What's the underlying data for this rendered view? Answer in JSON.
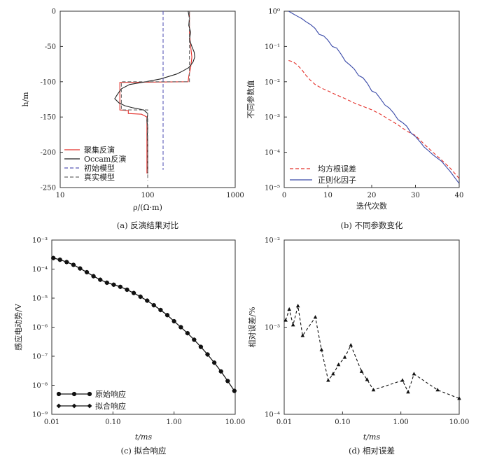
{
  "chart_data": [
    {
      "id": "a",
      "type": "line",
      "caption": "(a) 反演结果对比",
      "xlabel": "ρ/(Ω·m)",
      "ylabel": "h/m",
      "xscale": "log",
      "xlim": [
        10,
        1000
      ],
      "ylim": [
        -250,
        0
      ],
      "xticks": [
        {
          "v": 10,
          "label": "10"
        },
        {
          "v": 100,
          "label": "100"
        },
        {
          "v": 1000,
          "label": "1000"
        }
      ],
      "yticks": [
        {
          "v": 0,
          "label": "0"
        },
        {
          "v": -50,
          "label": "-50"
        },
        {
          "v": -100,
          "label": "-100"
        },
        {
          "v": -150,
          "label": "-150"
        },
        {
          "v": -200,
          "label": "-200"
        },
        {
          "v": -250,
          "label": "-250"
        }
      ],
      "legend_position": "bottom-left",
      "series": [
        {
          "name": "聚集反演",
          "color": "#e4312b",
          "dash": "",
          "points": [
            [
              300,
              0
            ],
            [
              300,
              -30
            ],
            [
              310,
              -50
            ],
            [
              320,
              -65
            ],
            [
              310,
              -80
            ],
            [
              295,
              -92
            ],
            [
              290,
              -100
            ],
            [
              48,
              -101
            ],
            [
              48,
              -140
            ],
            [
              60,
              -141
            ],
            [
              60,
              -145
            ],
            [
              85,
              -146
            ],
            [
              98,
              -150
            ],
            [
              98,
              -230
            ]
          ]
        },
        {
          "name": "Occam反演",
          "color": "#222222",
          "dash": "",
          "points": [
            [
              290,
              0
            ],
            [
              300,
              -10
            ],
            [
              295,
              -20
            ],
            [
              310,
              -30
            ],
            [
              300,
              -40
            ],
            [
              320,
              -50
            ],
            [
              340,
              -58
            ],
            [
              345,
              -65
            ],
            [
              330,
              -72
            ],
            [
              295,
              -80
            ],
            [
              250,
              -85
            ],
            [
              215,
              -89
            ],
            [
              180,
              -92
            ],
            [
              140,
              -96
            ],
            [
              95,
              -100
            ],
            [
              62,
              -104
            ],
            [
              50,
              -110
            ],
            [
              45,
              -118
            ],
            [
              42,
              -124
            ],
            [
              47,
              -130
            ],
            [
              55,
              -134
            ],
            [
              68,
              -137
            ],
            [
              90,
              -140
            ],
            [
              100,
              -145
            ],
            [
              98,
              -155
            ],
            [
              100,
              -165
            ],
            [
              99,
              -175
            ],
            [
              100,
              -185
            ],
            [
              100,
              -230
            ]
          ]
        },
        {
          "name": "初始模型",
          "color": "#5a5ab8",
          "dash": "5,3",
          "points": [
            [
              150,
              0
            ],
            [
              150,
              -225
            ]
          ]
        },
        {
          "name": "真实模型",
          "color": "#6a6a6a",
          "dash": "5,3",
          "points": [
            [
              300,
              0
            ],
            [
              300,
              -100
            ],
            [
              50,
              -100
            ],
            [
              50,
              -140
            ],
            [
              100,
              -140
            ],
            [
              100,
              -240
            ]
          ]
        }
      ]
    },
    {
      "id": "b",
      "type": "line",
      "caption": "(b) 不同参数变化",
      "xlabel": "迭代次数",
      "ylabel": "不同参数值",
      "yscale": "log",
      "xlim": [
        0,
        40
      ],
      "ylim": [
        1e-05,
        1
      ],
      "xticks": [
        {
          "v": 0,
          "label": "0"
        },
        {
          "v": 10,
          "label": "10"
        },
        {
          "v": 20,
          "label": "20"
        },
        {
          "v": 30,
          "label": "30"
        },
        {
          "v": 40,
          "label": "40"
        }
      ],
      "yticks": [
        {
          "v": 1,
          "label": "10⁰"
        },
        {
          "v": 0.1,
          "label": "10⁻¹"
        },
        {
          "v": 0.01,
          "label": "10⁻²"
        },
        {
          "v": 0.001,
          "label": "10⁻³"
        },
        {
          "v": 0.0001,
          "label": "10⁻⁴"
        },
        {
          "v": 1e-05,
          "label": "10⁻⁵"
        }
      ],
      "legend_position": "bottom-left",
      "series": [
        {
          "name": "均方根误差",
          "color": "#e4312b",
          "dash": "5,3",
          "points": [
            [
              1,
              0.04
            ],
            [
              2,
              0.037
            ],
            [
              3,
              0.03
            ],
            [
              4,
              0.022
            ],
            [
              5,
              0.015
            ],
            [
              6,
              0.011
            ],
            [
              7,
              0.0085
            ],
            [
              8,
              0.0072
            ],
            [
              9,
              0.0062
            ],
            [
              10,
              0.0055
            ],
            [
              12,
              0.0042
            ],
            [
              14,
              0.0033
            ],
            [
              16,
              0.0025
            ],
            [
              18,
              0.002
            ],
            [
              20,
              0.0016
            ],
            [
              22,
              0.0012
            ],
            [
              24,
              0.00085
            ],
            [
              26,
              0.0006
            ],
            [
              28,
              0.0004
            ],
            [
              30,
              0.0003
            ],
            [
              32,
              0.00017
            ],
            [
              34,
              0.0001
            ],
            [
              36,
              6e-05
            ],
            [
              38,
              3.5e-05
            ],
            [
              40,
              1.8e-05
            ]
          ]
        },
        {
          "name": "正则化因子",
          "color": "#3a4aa8",
          "dash": "",
          "points": [
            [
              1,
              1
            ],
            [
              2,
              0.85
            ],
            [
              3,
              0.72
            ],
            [
              4,
              0.62
            ],
            [
              5,
              0.5
            ],
            [
              6,
              0.42
            ],
            [
              7,
              0.33
            ],
            [
              8,
              0.22
            ],
            [
              9,
              0.2
            ],
            [
              10,
              0.15
            ],
            [
              11,
              0.1
            ],
            [
              12,
              0.09
            ],
            [
              13,
              0.06
            ],
            [
              14,
              0.038
            ],
            [
              15,
              0.03
            ],
            [
              16,
              0.023
            ],
            [
              17,
              0.015
            ],
            [
              18,
              0.013
            ],
            [
              19,
              0.009
            ],
            [
              20,
              0.0055
            ],
            [
              21,
              0.0048
            ],
            [
              22,
              0.0033
            ],
            [
              23,
              0.0022
            ],
            [
              24,
              0.0018
            ],
            [
              25,
              0.0013
            ],
            [
              26,
              0.00085
            ],
            [
              27,
              0.0007
            ],
            [
              28,
              0.00055
            ],
            [
              29,
              0.00035
            ],
            [
              30,
              0.00028
            ],
            [
              31,
              0.0002
            ],
            [
              32,
              0.00014
            ],
            [
              33,
              0.00011
            ],
            [
              34,
              8.5e-05
            ],
            [
              36,
              5.5e-05
            ],
            [
              38,
              2.8e-05
            ],
            [
              40,
              1.3e-05
            ]
          ]
        }
      ]
    },
    {
      "id": "c",
      "type": "line",
      "caption": "(c) 拟合响应",
      "xlabel": "t/ms",
      "ylabel": "感应电动势/V",
      "xscale": "log",
      "yscale": "log",
      "xlim": [
        0.01,
        10
      ],
      "ylim": [
        1e-09,
        0.001
      ],
      "xticks": [
        {
          "v": 0.01,
          "label": "0.01"
        },
        {
          "v": 0.1,
          "label": "0.10"
        },
        {
          "v": 1,
          "label": "1.00"
        },
        {
          "v": 10,
          "label": "10.00"
        }
      ],
      "yticks": [
        {
          "v": 0.001,
          "label": "10⁻³"
        },
        {
          "v": 0.0001,
          "label": "10⁻⁴"
        },
        {
          "v": 1e-05,
          "label": "10⁻⁵"
        },
        {
          "v": 1e-06,
          "label": "10⁻⁶"
        },
        {
          "v": 1e-07,
          "label": "10⁻⁷"
        },
        {
          "v": 1e-08,
          "label": "10⁻⁸"
        },
        {
          "v": 1e-09,
          "label": "10⁻⁹"
        }
      ],
      "legend_position": "bottom-left",
      "series": [
        {
          "name": "原始响应",
          "color": "#111111",
          "marker": "circle",
          "x": [
            0.0106,
            0.0136,
            0.0175,
            0.0226,
            0.029,
            0.0374,
            0.0481,
            0.062,
            0.0798,
            0.103,
            0.132,
            0.17,
            0.219,
            0.282,
            0.363,
            0.467,
            0.602,
            0.775,
            1.0,
            1.29,
            1.66,
            2.13,
            2.74,
            3.53,
            4.55,
            5.86,
            7.54,
            9.7
          ],
          "y": [
            0.00024,
            0.00021,
            0.000175,
            0.00014,
            0.000105,
            7.8e-05,
            5.7e-05,
            4.3e-05,
            3.4e-05,
            2.9e-05,
            2.45e-05,
            1.95e-05,
            1.5e-05,
            1.12e-05,
            8.2e-06,
            5.7e-06,
            3.9e-06,
            2.6e-06,
            1.6e-06,
            1e-06,
            6.2e-07,
            3.7e-07,
            2.1e-07,
            1.15e-07,
            6e-08,
            3e-08,
            1.4e-08,
            6.4e-09
          ]
        },
        {
          "name": "拟合响应",
          "color": "#111111",
          "marker": "diamond",
          "x": [
            0.0106,
            0.0136,
            0.0175,
            0.0226,
            0.029,
            0.0374,
            0.0481,
            0.062,
            0.0798,
            0.103,
            0.132,
            0.17,
            0.219,
            0.282,
            0.363,
            0.467,
            0.602,
            0.775,
            1.0,
            1.29,
            1.66,
            2.13,
            2.74,
            3.53,
            4.55,
            5.86,
            7.54,
            9.7
          ],
          "y": [
            0.00024,
            0.00021,
            0.000175,
            0.00014,
            0.000105,
            7.8e-05,
            5.7e-05,
            4.3e-05,
            3.4e-05,
            2.9e-05,
            2.45e-05,
            1.95e-05,
            1.5e-05,
            1.12e-05,
            8.2e-06,
            5.7e-06,
            3.9e-06,
            2.6e-06,
            1.6e-06,
            1e-06,
            6.2e-07,
            3.7e-07,
            2.1e-07,
            1.15e-07,
            6e-08,
            3e-08,
            1.4e-08,
            6.4e-09
          ]
        }
      ]
    },
    {
      "id": "d",
      "type": "line",
      "caption": "(d) 相对误差",
      "xlabel": "t/ms",
      "ylabel": "相对误差/%",
      "xscale": "log",
      "yscale": "log",
      "xlim": [
        0.01,
        10
      ],
      "ylim": [
        0.0001,
        0.01
      ],
      "xticks": [
        {
          "v": 0.01,
          "label": "0.01"
        },
        {
          "v": 0.1,
          "label": "0.10"
        },
        {
          "v": 1,
          "label": "1.00"
        },
        {
          "v": 10,
          "label": "10.00"
        }
      ],
      "yticks": [
        {
          "v": 0.01,
          "label": "10⁻²"
        },
        {
          "v": 0.001,
          "label": "10⁻³"
        },
        {
          "v": 0.0001,
          "label": "10⁻⁴"
        }
      ],
      "series": [
        {
          "name": "",
          "color": "#111111",
          "dash": "4,3",
          "marker": "triangle",
          "points": [
            [
              0.0106,
              0.0012
            ],
            [
              0.0122,
              0.0016
            ],
            [
              0.0142,
              0.00106
            ],
            [
              0.0172,
              0.00175
            ],
            [
              0.0207,
              0.0008
            ],
            [
              0.0342,
              0.0013
            ],
            [
              0.0436,
              0.00055
            ],
            [
              0.0568,
              0.000245
            ],
            [
              0.0689,
              0.00029
            ],
            [
              0.0853,
              0.00037
            ],
            [
              0.109,
              0.00045
            ],
            [
              0.139,
              0.00062
            ],
            [
              0.212,
              0.00031
            ],
            [
              0.264,
              0.00025
            ],
            [
              0.339,
              0.00019
            ],
            [
              1.066,
              0.000245
            ],
            [
              1.33,
              0.00018
            ],
            [
              1.68,
              0.00029
            ],
            [
              4.27,
              0.00019
            ],
            [
              10.0,
              0.000152
            ]
          ]
        }
      ]
    }
  ]
}
